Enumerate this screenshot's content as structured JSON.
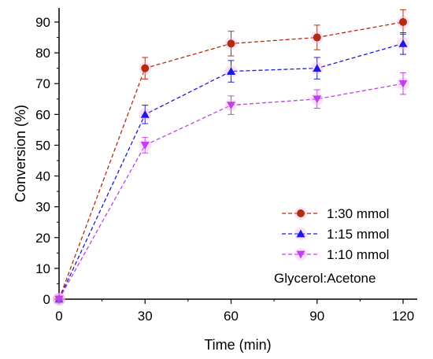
{
  "chart_data": {
    "type": "line",
    "xlabel": "Time (min)",
    "ylabel": "Conversion (%)",
    "xlim": [
      0,
      125
    ],
    "ylim": [
      0,
      95
    ],
    "xticks": [
      0,
      30,
      60,
      90,
      120
    ],
    "yticks": [
      0,
      10,
      20,
      30,
      40,
      50,
      60,
      70,
      80,
      90
    ],
    "grid": false,
    "legend_position": "bottom-right",
    "annotation": "Glycerol:Acetone",
    "series": [
      {
        "name": "1:30 mmol",
        "color": "#b22d0f",
        "marker": "circle",
        "x": [
          0,
          30,
          60,
          90,
          120
        ],
        "y": [
          0,
          75,
          83,
          85,
          90
        ],
        "error": [
          0,
          3.5,
          4,
          4,
          4
        ]
      },
      {
        "name": "1:15 mmol",
        "color": "#1a1ae0",
        "marker": "triangle-up",
        "x": [
          0,
          30,
          60,
          90,
          120
        ],
        "y": [
          0,
          60,
          74,
          75,
          83
        ],
        "error": [
          0,
          3,
          3.5,
          3.5,
          3.5
        ]
      },
      {
        "name": "1:10 mmol",
        "color": "#c040f0",
        "marker": "triangle-down",
        "x": [
          0,
          30,
          60,
          90,
          120
        ],
        "y": [
          0,
          50,
          63,
          65,
          70
        ],
        "error": [
          0,
          2.5,
          3,
          3,
          3.5
        ]
      }
    ]
  }
}
